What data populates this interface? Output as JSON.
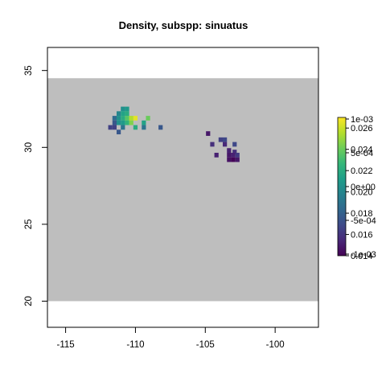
{
  "chart_data": {
    "type": "heatmap",
    "title": "Density, subspp: sinuatus",
    "xlabel": "",
    "ylabel": "",
    "xlim": [
      -116.3,
      -96.9
    ],
    "ylim": [
      18.3,
      36.5
    ],
    "x_ticks": [
      -115,
      -110,
      -105,
      -100
    ],
    "x_tick_labels": [
      "-115",
      "-110",
      "-105",
      "-100"
    ],
    "y_ticks": [
      20,
      25,
      30,
      35
    ],
    "y_tick_labels": [
      "20",
      "25",
      "30",
      "35"
    ],
    "raster_extent": {
      "xmin": -116.3,
      "xmax": -96.9,
      "ymin": 20.0,
      "ymax": 34.5
    },
    "raster_cell_size": 0.3,
    "background_color": "#bebebe",
    "color_scale": "viridis",
    "legend": {
      "placement": "right",
      "labels_left": [
        "0.014",
        "0.016",
        "0.018",
        "0.020",
        "0.022",
        "0.024",
        "0.026"
      ],
      "labels_left_values": [
        0.014,
        0.016,
        0.018,
        0.02,
        0.022,
        0.024,
        0.026
      ],
      "labels_right": [
        "-1e-03",
        "-5e-04",
        "0e+00",
        "5e-04",
        "1e-03"
      ],
      "labels_right_values": [
        -0.001,
        -0.0005,
        0.0,
        0.0005,
        0.001
      ],
      "range": [
        0.014,
        0.027
      ]
    },
    "cells": [
      {
        "x": -110.9,
        "y": 32.5,
        "v": 0.0205
      },
      {
        "x": -110.6,
        "y": 32.5,
        "v": 0.021
      },
      {
        "x": -111.2,
        "y": 32.2,
        "v": 0.02
      },
      {
        "x": -110.9,
        "y": 32.2,
        "v": 0.0215
      },
      {
        "x": -110.6,
        "y": 32.2,
        "v": 0.022
      },
      {
        "x": -111.2,
        "y": 31.9,
        "v": 0.0205
      },
      {
        "x": -110.9,
        "y": 31.9,
        "v": 0.022
      },
      {
        "x": -110.6,
        "y": 31.9,
        "v": 0.0235
      },
      {
        "x": -110.3,
        "y": 31.9,
        "v": 0.0255
      },
      {
        "x": -110.0,
        "y": 31.9,
        "v": 0.0265
      },
      {
        "x": -109.1,
        "y": 31.9,
        "v": 0.024
      },
      {
        "x": -111.5,
        "y": 31.9,
        "v": 0.0185
      },
      {
        "x": -110.9,
        "y": 31.6,
        "v": 0.021
      },
      {
        "x": -110.6,
        "y": 31.6,
        "v": 0.0225
      },
      {
        "x": -110.3,
        "y": 31.6,
        "v": 0.0245
      },
      {
        "x": -109.4,
        "y": 31.6,
        "v": 0.0215
      },
      {
        "x": -111.5,
        "y": 31.6,
        "v": 0.0175
      },
      {
        "x": -111.2,
        "y": 31.6,
        "v": 0.0205
      },
      {
        "x": -111.5,
        "y": 31.3,
        "v": 0.0165
      },
      {
        "x": -110.9,
        "y": 31.3,
        "v": 0.019
      },
      {
        "x": -110.0,
        "y": 31.3,
        "v": 0.022
      },
      {
        "x": -109.4,
        "y": 31.3,
        "v": 0.019
      },
      {
        "x": -108.2,
        "y": 31.3,
        "v": 0.0175
      },
      {
        "x": -111.8,
        "y": 31.3,
        "v": 0.0165
      },
      {
        "x": -111.2,
        "y": 31.0,
        "v": 0.0175
      },
      {
        "x": -104.8,
        "y": 30.9,
        "v": 0.0148
      },
      {
        "x": -103.9,
        "y": 30.5,
        "v": 0.0165
      },
      {
        "x": -103.6,
        "y": 30.5,
        "v": 0.0168
      },
      {
        "x": -104.5,
        "y": 30.2,
        "v": 0.0158
      },
      {
        "x": -103.6,
        "y": 30.2,
        "v": 0.0155
      },
      {
        "x": -102.9,
        "y": 30.2,
        "v": 0.0168
      },
      {
        "x": -103.3,
        "y": 29.8,
        "v": 0.0152
      },
      {
        "x": -102.9,
        "y": 29.7,
        "v": 0.0158
      },
      {
        "x": -104.2,
        "y": 29.5,
        "v": 0.0152
      },
      {
        "x": -103.3,
        "y": 29.5,
        "v": 0.0148
      },
      {
        "x": -103.0,
        "y": 29.5,
        "v": 0.0152
      },
      {
        "x": -102.7,
        "y": 29.5,
        "v": 0.0162
      },
      {
        "x": -103.3,
        "y": 29.2,
        "v": 0.0146
      },
      {
        "x": -103.0,
        "y": 29.2,
        "v": 0.0142
      },
      {
        "x": -102.7,
        "y": 29.2,
        "v": 0.0148
      }
    ]
  }
}
